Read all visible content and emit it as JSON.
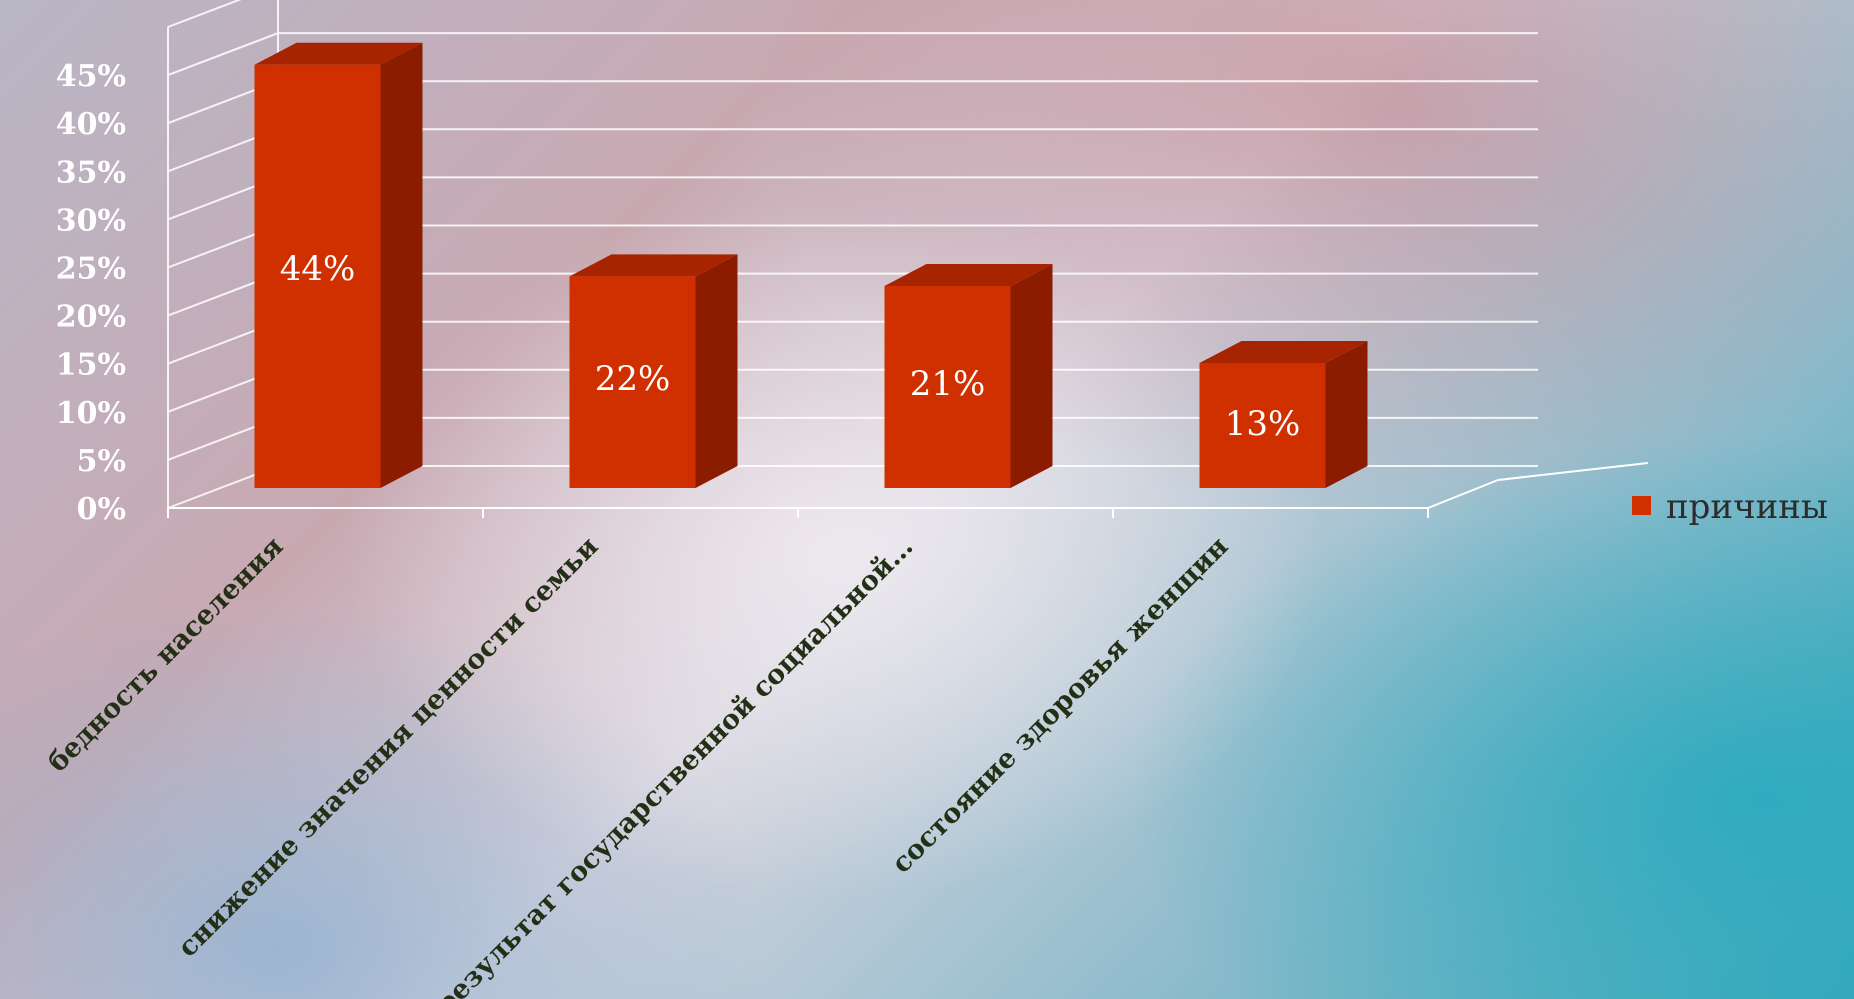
{
  "chart_data": {
    "type": "bar",
    "categories": [
      "бедность населения",
      "снижение значения ценности семьи",
      "результат государственной социальной…",
      "состояние здоровья женщин"
    ],
    "series": [
      {
        "name": "причины",
        "values": [
          0.44,
          0.22,
          0.21,
          0.13
        ]
      }
    ],
    "data_labels": [
      "44%",
      "22%",
      "21%",
      "13%"
    ],
    "y_ticks": [
      "0%",
      "5%",
      "10%",
      "15%",
      "20%",
      "25%",
      "30%",
      "35%",
      "40%",
      "45%"
    ],
    "ylim": [
      0,
      0.45
    ],
    "grid": true,
    "legend_position": "right",
    "three_d": true,
    "colors": {
      "bar_front": "#d03000",
      "bar_side": "#8c1c00",
      "bar_top": "#a62400",
      "grid": "#ffffff"
    }
  }
}
